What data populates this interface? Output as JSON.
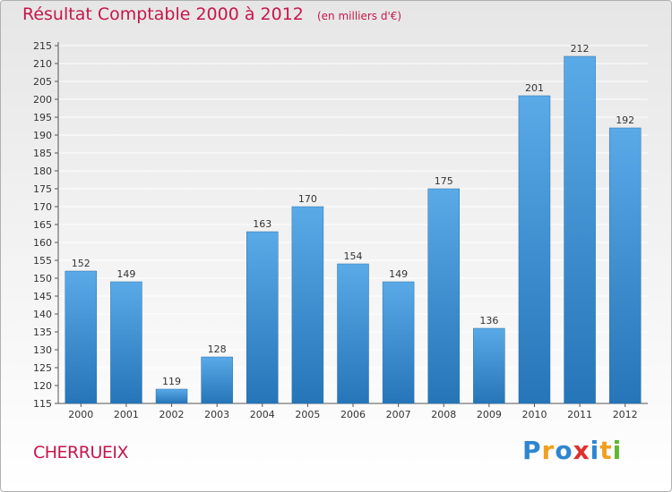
{
  "header": {
    "title": "Résultat Comptable 2000 à 2012",
    "unit": "(en milliers d'€)"
  },
  "footer": {
    "commune": "CHERRUEIX",
    "logo_text": "Proxiti",
    "logo_letters": [
      {
        "ch": "P",
        "color": "#2e86d0"
      },
      {
        "ch": "r",
        "color": "#f0a020"
      },
      {
        "ch": "o",
        "color": "#2e86d0"
      },
      {
        "ch": "x",
        "color": "#e0302e"
      },
      {
        "ch": "i",
        "color": "#2e86d0"
      },
      {
        "ch": "t",
        "color": "#f0a020"
      },
      {
        "ch": "i",
        "color": "#5db832"
      }
    ]
  },
  "colors": {
    "accent": "#c6164c",
    "bar_top": "#5aaae8",
    "bar_bottom": "#2575b8",
    "grid": "#ffffff",
    "text": "#333333"
  },
  "chart_data": {
    "type": "bar",
    "title": "Résultat Comptable 2000 à 2012",
    "subtitle": "(en milliers d'€)",
    "categories": [
      "2000",
      "2001",
      "2002",
      "2003",
      "2004",
      "2005",
      "2006",
      "2007",
      "2008",
      "2009",
      "2010",
      "2011",
      "2012"
    ],
    "values": [
      152,
      149,
      119,
      128,
      163,
      170,
      154,
      149,
      175,
      136,
      201,
      212,
      192
    ],
    "ylim": [
      115,
      215
    ],
    "ytick_step": 5,
    "grid": true,
    "xlabel": "",
    "ylabel": ""
  }
}
